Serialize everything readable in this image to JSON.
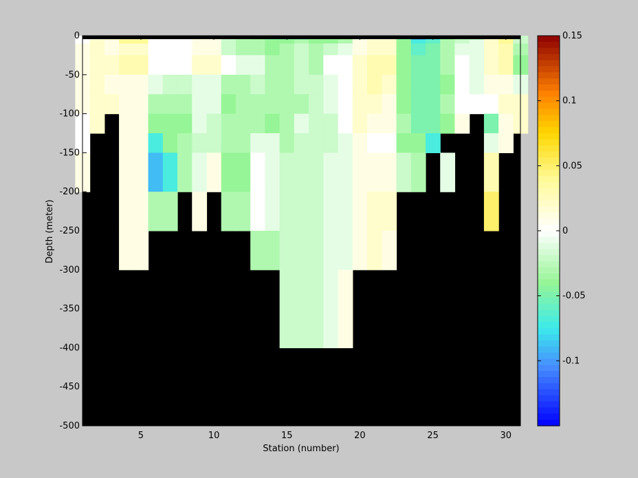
{
  "colors": {
    "background": "#c8c8c8",
    "mask": "#000000"
  },
  "chart_data": {
    "type": "heatmap",
    "title": "",
    "xlabel": "Station (number)",
    "ylabel": "Depth (meter)",
    "xlim": [
      1,
      31
    ],
    "ylim": [
      -500,
      0
    ],
    "xticks": [
      5,
      10,
      15,
      20,
      25,
      30
    ],
    "xtick_labels": [
      "5",
      "10",
      "15",
      "20",
      "25",
      "30"
    ],
    "yticks": [
      0,
      -50,
      -100,
      -150,
      -200,
      -250,
      -300,
      -350,
      -400,
      -450,
      -500
    ],
    "ytick_labels": [
      "0",
      "-50",
      "-100",
      "-150",
      "-200",
      "-250",
      "-300",
      "-350",
      "-400",
      "-450",
      "-500"
    ],
    "depth_bins": [
      0,
      -5,
      -10,
      -25,
      -50,
      -75,
      -100,
      -125,
      -150,
      -200,
      -250,
      -300,
      -400
    ],
    "stations": [
      1,
      2,
      3,
      4,
      5,
      6,
      7,
      8,
      9,
      10,
      11,
      12,
      13,
      14,
      15,
      16,
      17,
      18,
      19,
      20,
      21,
      22,
      23,
      24,
      25,
      26,
      27,
      28,
      29,
      30,
      31
    ],
    "bottom_depth": [
      -200,
      -100,
      -100,
      -300,
      -300,
      -250,
      -250,
      -200,
      -250,
      -200,
      -250,
      -250,
      -300,
      -300,
      -400,
      -400,
      -400,
      -400,
      -400,
      -300,
      -300,
      -300,
      -200,
      -150,
      -200,
      -125,
      -100,
      -250,
      -150,
      -125,
      -500
    ],
    "colorbar": {
      "range": [
        -0.15,
        0.15
      ],
      "ticks": [
        -0.1,
        -0.05,
        0,
        0.05,
        0.1,
        0.15
      ],
      "tick_labels": [
        "-0.1",
        "-0.05",
        "0",
        "0.05",
        "0.1",
        "0.15"
      ],
      "colormap": "blue-cyan-green-white-yellow-orange-red"
    },
    "values": [
      [
        0.0,
        0.01,
        0.02,
        0.03,
        0.03,
        0.0,
        0.0,
        0.0,
        0.01,
        0.01,
        -0.02,
        -0.03,
        -0.04,
        -0.05,
        -0.05,
        -0.05,
        -0.04,
        -0.04,
        -0.04,
        -0.01,
        0.01,
        0.01,
        -0.05,
        -0.1,
        -0.08,
        -0.04,
        -0.03,
        -0.03,
        0.02,
        0.04,
        -0.02
      ],
      [
        0.0,
        0.02,
        0.01,
        0.04,
        0.04,
        0.0,
        0.0,
        0.0,
        0.01,
        0.01,
        -0.02,
        -0.03,
        -0.03,
        -0.04,
        -0.04,
        -0.03,
        -0.04,
        -0.04,
        -0.03,
        0.01,
        0.02,
        0.02,
        -0.04,
        -0.07,
        -0.06,
        -0.03,
        -0.02,
        -0.01,
        0.02,
        0.04,
        -0.02
      ],
      [
        0.01,
        0.02,
        0.01,
        0.02,
        0.02,
        0.0,
        0.0,
        0.0,
        0.01,
        0.01,
        -0.02,
        -0.03,
        -0.03,
        -0.04,
        -0.03,
        -0.02,
        -0.03,
        -0.02,
        -0.01,
        0.01,
        0.02,
        0.02,
        -0.04,
        -0.06,
        -0.05,
        -0.03,
        -0.01,
        -0.01,
        0.02,
        0.03,
        -0.03
      ],
      [
        0.01,
        0.02,
        0.02,
        0.03,
        0.03,
        0.0,
        0.0,
        0.0,
        0.02,
        0.02,
        0.0,
        -0.01,
        -0.01,
        -0.03,
        -0.03,
        -0.02,
        -0.03,
        0.0,
        0.0,
        0.02,
        0.03,
        0.03,
        -0.04,
        -0.05,
        -0.05,
        -0.03,
        0.0,
        -0.01,
        0.02,
        0.03,
        -0.04
      ],
      [
        0.01,
        0.02,
        0.01,
        0.01,
        0.01,
        -0.01,
        -0.02,
        -0.02,
        -0.01,
        -0.01,
        -0.03,
        -0.03,
        -0.02,
        -0.03,
        -0.03,
        -0.02,
        -0.02,
        -0.01,
        0.0,
        0.02,
        0.03,
        0.02,
        -0.04,
        -0.05,
        -0.05,
        -0.04,
        0.0,
        -0.01,
        0.01,
        0.01,
        -0.01
      ],
      [
        0.01,
        0.02,
        0.02,
        0.01,
        0.01,
        -0.03,
        -0.03,
        -0.03,
        -0.01,
        -0.01,
        -0.04,
        -0.03,
        -0.03,
        -0.03,
        -0.03,
        -0.03,
        -0.02,
        -0.01,
        0.0,
        0.02,
        0.02,
        0.01,
        -0.04,
        -0.05,
        -0.05,
        -0.03,
        0.0,
        0.0,
        0.0,
        0.02,
        0.02
      ],
      [
        0.0,
        0.02,
        null,
        0.01,
        0.01,
        -0.04,
        -0.04,
        -0.04,
        -0.01,
        -0.02,
        -0.03,
        -0.03,
        -0.03,
        -0.04,
        -0.03,
        -0.01,
        -0.02,
        -0.02,
        0.0,
        0.02,
        0.01,
        0.01,
        -0.03,
        -0.05,
        -0.05,
        -0.04,
        0.01,
        null,
        -0.05,
        0.01,
        0.02
      ],
      [
        0.0,
        null,
        null,
        0.01,
        0.01,
        -0.07,
        -0.04,
        -0.03,
        -0.02,
        -0.02,
        -0.03,
        -0.03,
        -0.01,
        -0.01,
        -0.03,
        -0.02,
        -0.02,
        -0.02,
        -0.01,
        0.01,
        0.0,
        0.0,
        -0.04,
        -0.04,
        -0.07,
        null,
        null,
        null,
        -0.01,
        0.01,
        null
      ],
      [
        0.01,
        null,
        null,
        0.01,
        0.01,
        -0.09,
        -0.07,
        -0.03,
        -0.01,
        0.01,
        -0.04,
        -0.04,
        0.0,
        -0.01,
        -0.02,
        -0.02,
        -0.02,
        -0.01,
        -0.01,
        0.01,
        0.01,
        0.01,
        -0.02,
        -0.03,
        null,
        -0.01,
        null,
        null,
        0.03,
        null,
        null
      ],
      [
        null,
        null,
        null,
        0.01,
        0.01,
        -0.03,
        -0.03,
        null,
        0.01,
        null,
        -0.03,
        -0.03,
        0.0,
        -0.01,
        -0.02,
        -0.02,
        -0.02,
        -0.01,
        -0.01,
        0.01,
        0.02,
        0.02,
        null,
        null,
        null,
        null,
        null,
        null,
        0.05,
        null,
        null
      ],
      [
        null,
        null,
        null,
        0.01,
        0.01,
        null,
        null,
        null,
        null,
        null,
        null,
        null,
        -0.03,
        -0.03,
        -0.02,
        -0.02,
        -0.02,
        -0.01,
        -0.01,
        0.01,
        0.02,
        0.01,
        null,
        null,
        null,
        null,
        null,
        null,
        null,
        null,
        null
      ],
      [
        null,
        null,
        null,
        null,
        null,
        null,
        null,
        null,
        null,
        null,
        null,
        null,
        null,
        null,
        -0.02,
        -0.02,
        -0.02,
        -0.01,
        0.01,
        null,
        null,
        null,
        null,
        null,
        null,
        null,
        null,
        null,
        null,
        null,
        null
      ]
    ]
  }
}
